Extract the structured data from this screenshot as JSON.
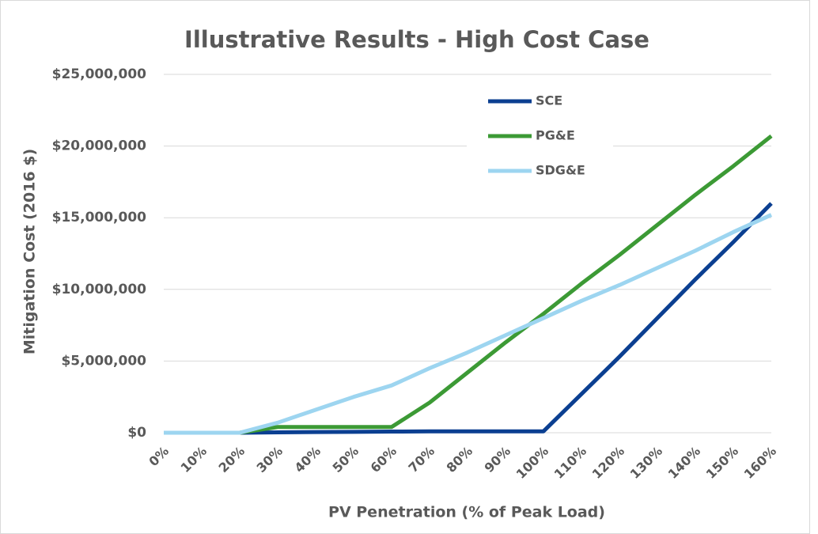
{
  "chart_data": {
    "type": "line",
    "title": "Illustrative Results - High Cost Case",
    "x_label": "PV Penetration (% of Peak Load)",
    "y_label": "Mitigation Cost (2016 $)",
    "categories": [
      "0%",
      "10%",
      "20%",
      "30%",
      "40%",
      "50%",
      "60%",
      "70%",
      "80%",
      "90%",
      "100%",
      "110%",
      "120%",
      "130%",
      "140%",
      "150%",
      "160%"
    ],
    "series": [
      {
        "name": "SCE",
        "color": "#0b3f91",
        "values": [
          0,
          0,
          0,
          30000,
          50000,
          60000,
          80000,
          100000,
          100000,
          100000,
          100000,
          2700000,
          5300000,
          8000000,
          10700000,
          13300000,
          16000000
        ]
      },
      {
        "name": "PG&E",
        "color": "#3c9a35",
        "values": [
          0,
          0,
          0,
          400000,
          400000,
          400000,
          400000,
          2100000,
          4200000,
          6300000,
          8300000,
          10400000,
          12400000,
          14500000,
          16600000,
          18600000,
          20700000
        ]
      },
      {
        "name": "SDG&E",
        "color": "#9dd5f0",
        "values": [
          0,
          0,
          0,
          700000,
          1600000,
          2500000,
          3300000,
          4500000,
          5600000,
          6800000,
          8000000,
          9200000,
          10300000,
          11500000,
          12700000,
          14000000,
          15200000
        ]
      }
    ],
    "ylim": [
      0,
      25000000
    ],
    "yticks": [
      {
        "value": 0,
        "label": "$0"
      },
      {
        "value": 5000000,
        "label": "$5,000,000"
      },
      {
        "value": 10000000,
        "label": "$10,000,000"
      },
      {
        "value": 15000000,
        "label": "$15,000,000"
      },
      {
        "value": 20000000,
        "label": "$20,000,000"
      },
      {
        "value": 25000000,
        "label": "$25,000,000"
      }
    ],
    "grid": true,
    "legend": "top-right"
  }
}
